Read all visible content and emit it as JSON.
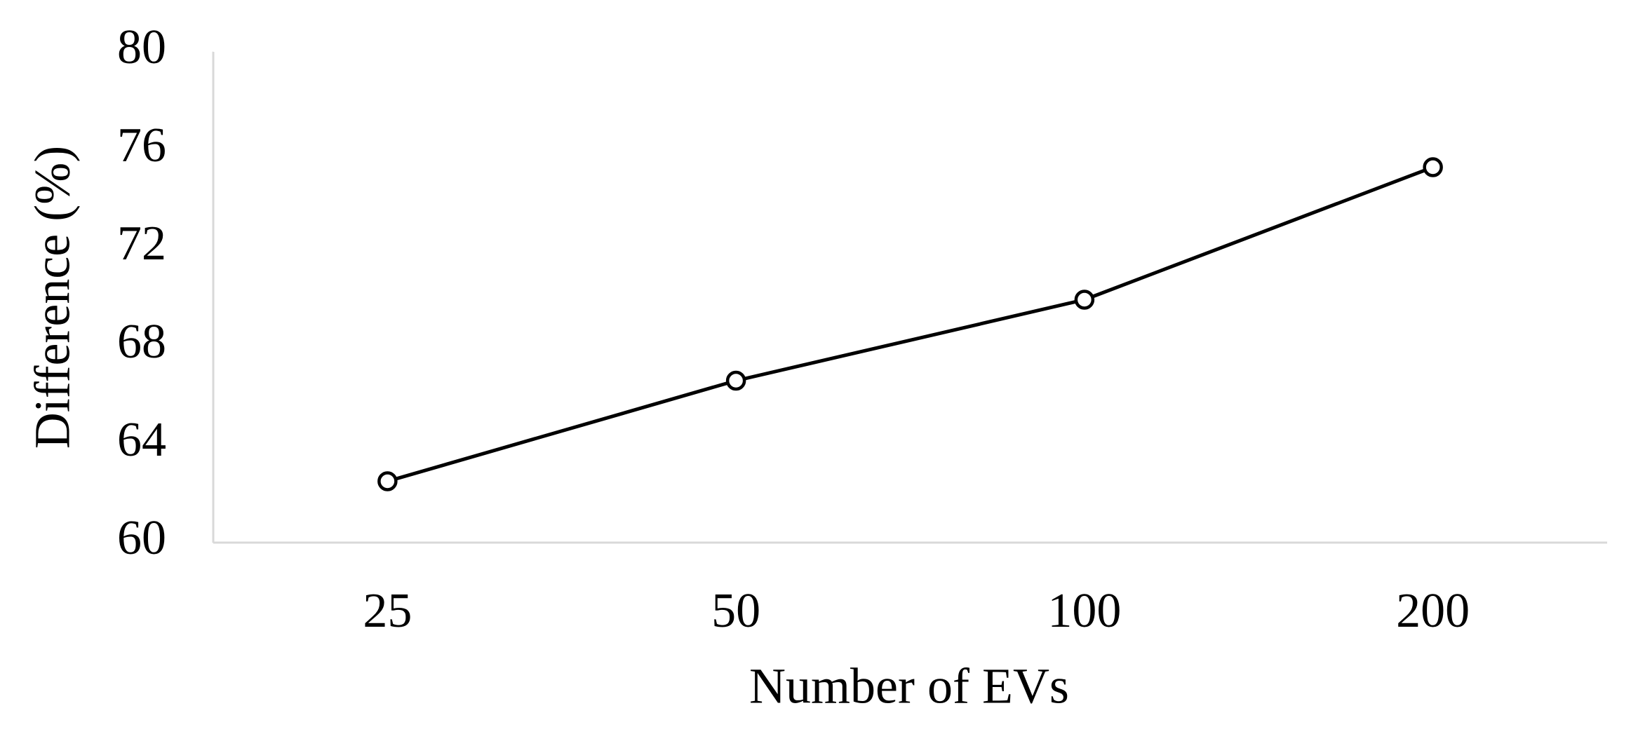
{
  "chart_data": {
    "type": "line",
    "x_label": "Number of EVs",
    "y_label": "Difference (%)",
    "categories": [
      "25",
      "50",
      "100",
      "200"
    ],
    "values": [
      62.5,
      66.6,
      69.9,
      75.3
    ],
    "color": "#000000",
    "marker": "open-circle",
    "ylim": [
      60,
      80
    ],
    "yticks": [
      60,
      64,
      68,
      72,
      76,
      80
    ],
    "grid": false
  }
}
